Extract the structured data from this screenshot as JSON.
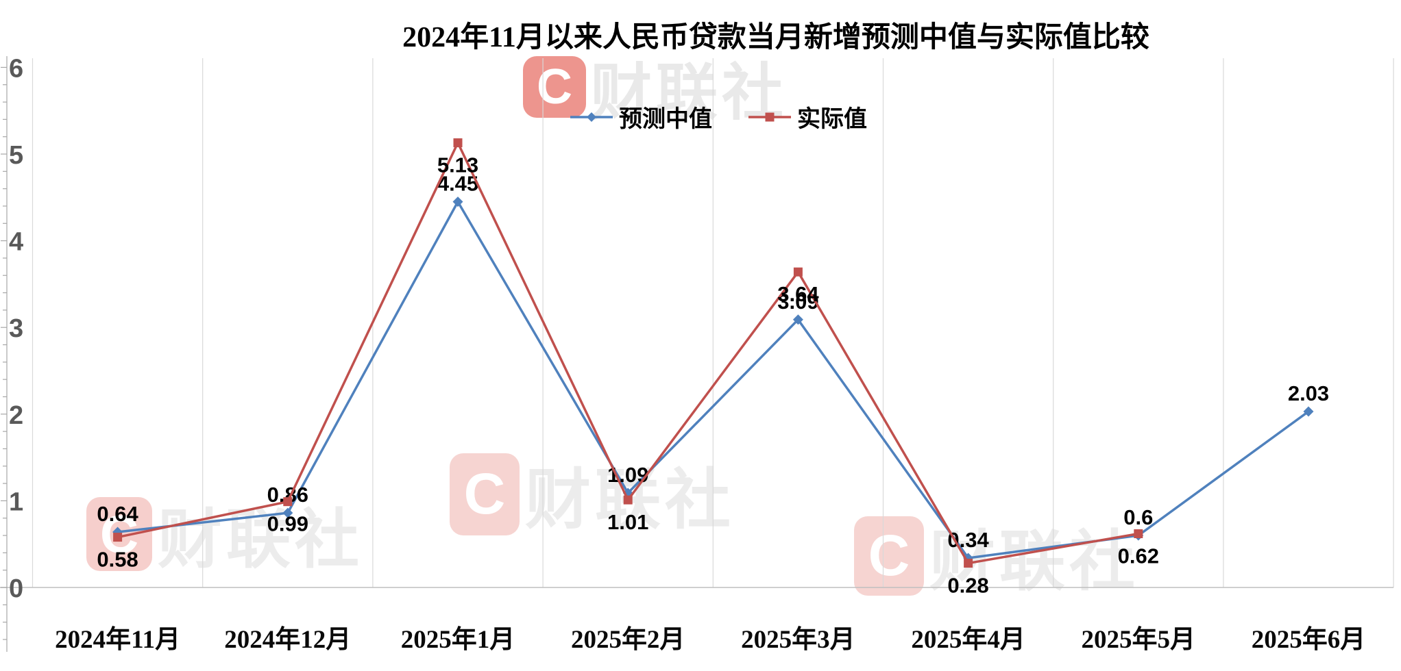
{
  "title": "2024年11月以来人民币贷款当月新增预测中值与实际值比较",
  "watermark": {
    "logo_letter": "C",
    "brand": "财联社"
  },
  "chart_data": {
    "type": "line",
    "title": "2024年11月以来人民币贷款当月新增预测中值与实际值比较",
    "categories": [
      "2024年11月",
      "2024年12月",
      "2025年1月",
      "2025年2月",
      "2025年3月",
      "2025年4月",
      "2025年5月",
      "2025年6月"
    ],
    "series": [
      {
        "name": "预测中值",
        "color": "#4f81bd",
        "marker": "diamond",
        "label_position": "above",
        "values": [
          0.64,
          0.86,
          4.45,
          1.09,
          3.09,
          0.34,
          0.6,
          2.03
        ],
        "labels": [
          "0.64",
          "0.86",
          "4.45",
          "1.09",
          "3.09",
          "0.34",
          "0.6",
          "2.03"
        ]
      },
      {
        "name": "实际值",
        "color": "#c0504d",
        "marker": "square",
        "label_position": "below",
        "values": [
          0.58,
          0.99,
          5.13,
          1.01,
          3.64,
          0.28,
          0.62,
          null
        ],
        "labels": [
          "0.58",
          "0.99",
          "5.13",
          "1.01",
          "3.64",
          "0.28",
          "0.62",
          null
        ]
      }
    ],
    "xlabel": "",
    "ylabel": "",
    "ylim": [
      0,
      6
    ],
    "yticks": [
      0,
      1,
      2,
      3,
      4,
      5,
      6
    ],
    "grid": "vertical-only",
    "legend_position": "top-center",
    "colors": {
      "gridline": "#d9d9d9",
      "axis": "#bfbfbf",
      "tick_label": "#595959",
      "data_label": "#000000"
    }
  }
}
